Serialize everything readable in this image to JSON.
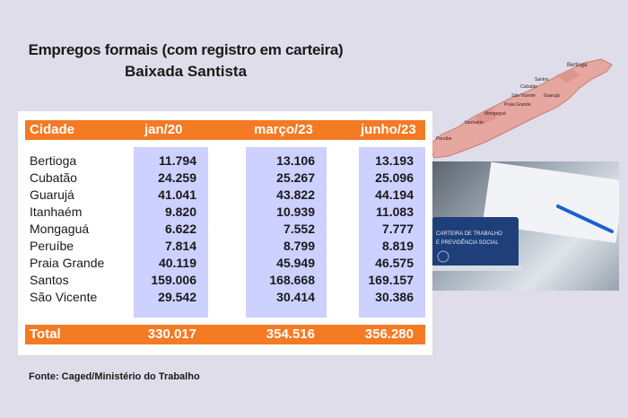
{
  "title": "Empregos formais (com registro em carteira)",
  "subtitle": "Baixada Santista",
  "source": "Fonte: Caged/Ministério do Trabalho",
  "colors": {
    "band": "#f47a24",
    "column_highlight": "#ccd1ff",
    "background": "#dedde9"
  },
  "chart_data": {
    "type": "table",
    "columns": [
      "Cidade",
      "jan/20",
      "março/23",
      "junho/23"
    ],
    "rows": [
      [
        "Bertioga",
        "11.794",
        "13.106",
        "13.193"
      ],
      [
        "Cubatão",
        "24.259",
        "25.267",
        "25.096"
      ],
      [
        "Guarujá",
        "41.041",
        "43.822",
        "44.194"
      ],
      [
        "Itanhaém",
        "9.820",
        "10.939",
        "11.083"
      ],
      [
        "Mongaguá",
        "6.622",
        "7.552",
        "7.777"
      ],
      [
        "Peruíbe",
        "7.814",
        "8.799",
        "8.819"
      ],
      [
        "Praia Grande",
        "40.119",
        "45.949",
        "46.575"
      ],
      [
        "Santos",
        "159.006",
        "168.668",
        "169.157"
      ],
      [
        "São Vicente",
        "29.542",
        "30.414",
        "30.386"
      ]
    ],
    "total": [
      "Total",
      "330.017",
      "354.516",
      "356.280"
    ]
  },
  "map": {
    "labels": [
      "Bertioga",
      "Santos",
      "Cubatão",
      "São Vicente",
      "Guarujá",
      "Praia Grande",
      "Mongaguá",
      "Itanhaém",
      "Peruíbe"
    ]
  },
  "photo": {
    "card_line1": "CARTEIRA DE TRABALHO",
    "card_line2": "E PREVIDÊNCIA SOCIAL"
  }
}
